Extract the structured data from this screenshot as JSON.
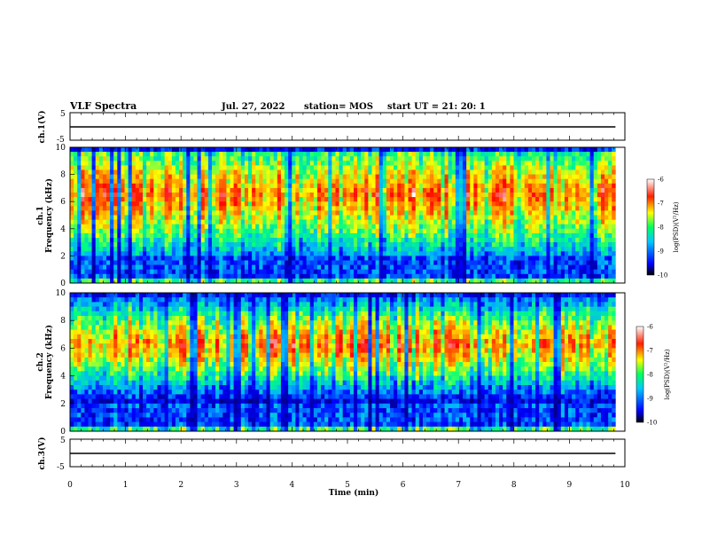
{
  "header": {
    "title": "VLF Spectra",
    "date": "Jul. 27, 2022",
    "station": "station= MOS",
    "start_ut": "start UT =  21: 20: 1"
  },
  "chart_data": [
    {
      "type": "line",
      "name": "ch1-waveform",
      "ylabel": "ch.1(V)",
      "ylim": [
        -5,
        5
      ],
      "yticks": [
        "5",
        "-5"
      ],
      "xlim": [
        0,
        10
      ],
      "series": [
        {
          "x": [
            0,
            9.83
          ],
          "y": [
            0,
            0
          ]
        }
      ]
    },
    {
      "type": "heatmap",
      "name": "ch1-spectrogram",
      "ylabel_channel": "ch.1",
      "ylabel": "Frequency (kHz)",
      "ylim": [
        0,
        10
      ],
      "yticks": [
        "0",
        "2",
        "4",
        "6",
        "8",
        "10"
      ],
      "xlim": [
        0,
        10
      ],
      "x_extent": [
        0,
        9.83
      ],
      "intense_band_khz": [
        4,
        9
      ],
      "colorbar": {
        "label": "log(PSD)(V²/Hz)",
        "range": [
          -10,
          -6
        ],
        "ticks": [
          "-6",
          "-7",
          "-8",
          "-9",
          "-10"
        ]
      }
    },
    {
      "type": "heatmap",
      "name": "ch2-spectrogram",
      "ylabel_channel": "ch.2",
      "ylabel": "Frequency (kHz)",
      "ylim": [
        0,
        10
      ],
      "yticks": [
        "0",
        "2",
        "4",
        "6",
        "8",
        "10"
      ],
      "xlim": [
        0,
        10
      ],
      "x_extent": [
        0,
        9.83
      ],
      "intense_band_khz": [
        4.5,
        8
      ],
      "colorbar": {
        "label": "log(PSD)(V²/Hz)",
        "range": [
          -10,
          -6
        ],
        "ticks": [
          "-6",
          "-7",
          "-8",
          "-9",
          "-10"
        ]
      }
    },
    {
      "type": "line",
      "name": "ch3-waveform",
      "ylabel": "ch.3(V)",
      "ylim": [
        -5,
        5
      ],
      "yticks": [
        "5",
        "-5"
      ],
      "xlim": [
        0,
        10
      ],
      "series": [
        {
          "x": [
            0,
            9.83
          ],
          "y": [
            0,
            0
          ]
        }
      ]
    }
  ],
  "xaxis": {
    "label": "Time (min)",
    "ticks": [
      "0",
      "1",
      "2",
      "3",
      "4",
      "5",
      "6",
      "7",
      "8",
      "9",
      "10"
    ]
  },
  "colors": {
    "colormap": [
      "#000070",
      "#0000ff",
      "#00b4ff",
      "#00ff80",
      "#ffff00",
      "#ff8000",
      "#ff0000",
      "#ffffff"
    ]
  }
}
